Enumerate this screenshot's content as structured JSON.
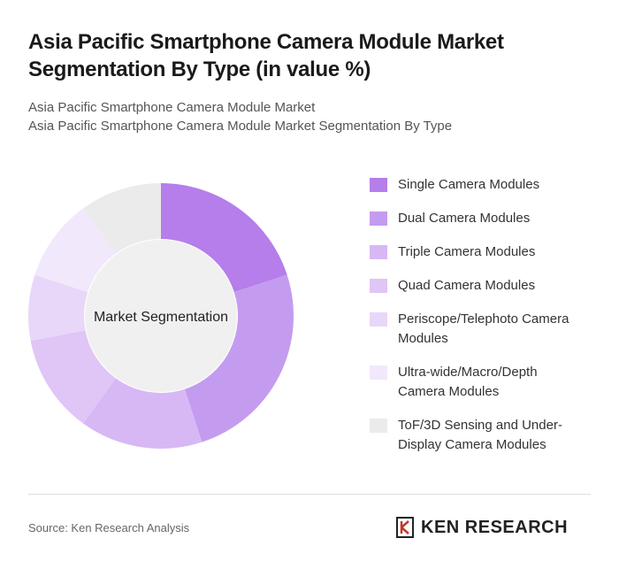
{
  "chart_data": {
    "type": "donut",
    "title": "Asia Pacific Smartphone Camera Module Market Segmentation By Type (in value %)",
    "subtitle": [
      "Asia Pacific Smartphone Camera Module Market",
      "Asia Pacific Smartphone Camera Module Market Segmentation By Type"
    ],
    "center_label": "Market Segmentation",
    "categories": [
      "Single Camera Modules",
      "Dual Camera Modules",
      "Triple Camera Modules",
      "Quad Camera Modules",
      "Periscope/Telephoto Camera Modules",
      "Ultra-wide/Macro/Depth Camera Modules",
      "ToF/3D Sensing and Under-Display Camera Modules"
    ],
    "values": [
      20,
      25,
      15,
      12,
      8,
      10,
      10
    ],
    "colors": [
      "#b57eea",
      "#c49cef",
      "#d7b8f5",
      "#dfc6f6",
      "#e8d7f9",
      "#f1e8fc",
      "#ebebeb"
    ]
  },
  "source": "Source: Ken Research Analysis",
  "logo": "KEN RESEARCH"
}
